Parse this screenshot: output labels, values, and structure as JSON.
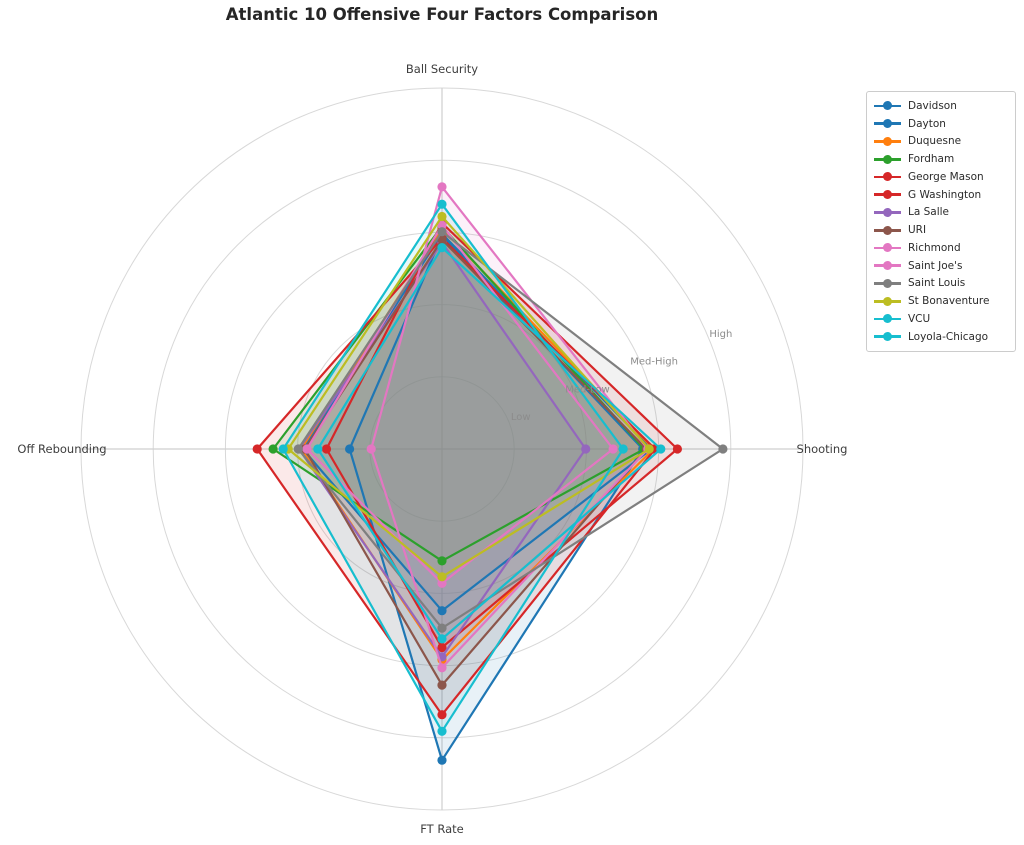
{
  "title": "Atlantic 10 Offensive Four Factors Comparison",
  "chart_data": {
    "type": "radar",
    "title": "Atlantic 10 Offensive Four Factors Comparison",
    "axes": [
      "Ball Security",
      "Shooting",
      "FT Rate",
      "Off Rebounding"
    ],
    "axis_angles_deg": [
      90,
      0,
      -90,
      180
    ],
    "radial_tick_labels": [
      "Low",
      "Med-Low",
      "Med-High",
      "High"
    ],
    "radial_tick_values": [
      1,
      2,
      3,
      4
    ],
    "rlim": [
      0,
      5
    ],
    "rlabel_position_deg": 22.5,
    "grid": true,
    "fill_alpha": 0.1,
    "legend_position": "outside upper right",
    "series": [
      {
        "name": "Davidson",
        "color": "#1f77b4",
        "values": [
          2.95,
          2.78,
          4.31,
          1.28
        ]
      },
      {
        "name": "Dayton",
        "color": "#1f77b4",
        "values": [
          2.98,
          2.9,
          2.24,
          1.93
        ]
      },
      {
        "name": "Duquesne",
        "color": "#ff7f0e",
        "values": [
          3.05,
          2.93,
          2.92,
          1.95
        ]
      },
      {
        "name": "Fordham",
        "color": "#2ca02c",
        "values": [
          3.08,
          2.8,
          1.55,
          2.34
        ]
      },
      {
        "name": "George Mason",
        "color": "#d62728",
        "values": [
          2.92,
          2.95,
          3.68,
          2.56
        ]
      },
      {
        "name": "G Washington",
        "color": "#d62728",
        "values": [
          3.13,
          3.26,
          2.75,
          1.6
        ]
      },
      {
        "name": "La Salle",
        "color": "#9467bd",
        "values": [
          2.86,
          1.99,
          2.88,
          1.98
        ]
      },
      {
        "name": "URI",
        "color": "#8c564b",
        "values": [
          2.9,
          2.83,
          3.27,
          1.9
        ]
      },
      {
        "name": "Richmond",
        "color": "#e377c2",
        "values": [
          3.1,
          2.37,
          1.86,
          1.87
        ]
      },
      {
        "name": "Saint Joe's",
        "color": "#e377c2",
        "values": [
          3.63,
          2.85,
          3.03,
          0.98
        ]
      },
      {
        "name": "Saint Louis",
        "color": "#7f7f7f",
        "values": [
          3.01,
          3.89,
          2.48,
          1.99
        ]
      },
      {
        "name": "St Bonaventure",
        "color": "#bcbd22",
        "values": [
          3.22,
          2.87,
          1.77,
          2.13
        ]
      },
      {
        "name": "VCU",
        "color": "#17becf",
        "values": [
          3.39,
          2.51,
          3.91,
          2.2
        ]
      },
      {
        "name": "Loyola-Chicago",
        "color": "#17becf",
        "values": [
          2.79,
          3.03,
          2.63,
          1.72
        ]
      }
    ],
    "style_colors": {
      "grid_ring": "#d8d8d8",
      "spoke": "#cfcfcf",
      "tick_label": "#8c8c8c",
      "axis_label": "#3d3d3d",
      "title": "#262626"
    }
  }
}
